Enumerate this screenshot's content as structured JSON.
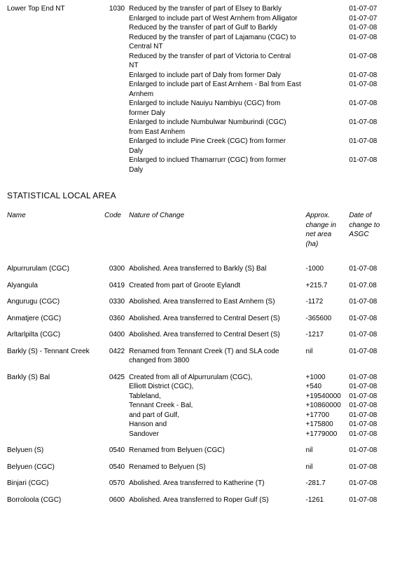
{
  "top_area": {
    "name": "Lower Top End NT",
    "code": "1030",
    "rows": [
      {
        "nature": "Reduced by the transfer of part of Elsey to Barkly",
        "approx": "",
        "date": "01-07-07"
      },
      {
        "nature": "Enlarged to include part of West Arnhem from Alligator",
        "approx": "",
        "date": "01-07-07"
      },
      {
        "nature": "Reduced by the transfer of part of Gulf to Barkly",
        "approx": "",
        "date": "01-07-08"
      },
      {
        "nature": "Reduced by the transfer of part of Lajamanu (CGC) to Central NT",
        "approx": "",
        "date": "01-07-08"
      },
      {
        "nature": "Reduced by the transfer of part of Victoria to Central NT",
        "approx": "",
        "date": "01-07-08"
      },
      {
        "nature": "Enlarged to include part of Daly from former Daly",
        "approx": "",
        "date": "01-07-08"
      },
      {
        "nature": "Enlarged to include part of East Arnhem - Bal from East Arnhem",
        "approx": "",
        "date": "01-07-08"
      },
      {
        "nature": "Enlarged to include Nauiyu Nambiyu (CGC) from former Daly",
        "approx": "",
        "date": "01-07-08"
      },
      {
        "nature": "Enlarged to include Numbulwar Numburindi (CGC) from East Arnhem",
        "approx": "",
        "date": "01-07-08"
      },
      {
        "nature": "Enlarged to include Pine Creek (CGC) from former Daly",
        "approx": "",
        "date": "01-07-08"
      },
      {
        "nature": "Enlarged to inclued Thamarrurr (CGC) from former Daly",
        "approx": "",
        "date": "01-07-08"
      }
    ]
  },
  "section_heading": "STATISTICAL LOCAL AREA",
  "headers": {
    "name": "Name",
    "code": "Code",
    "nature": "Nature of Change",
    "approx": "Approx. change in net area (ha)",
    "date": "Date of change to ASGC"
  },
  "entries": [
    {
      "name": "Alpurrurulam (CGC)",
      "code": "0300",
      "rows": [
        {
          "nature": "Abolished. Area transferred to Barkly (S) Bal",
          "approx": "-1000",
          "date": "01-07-08"
        }
      ]
    },
    {
      "name": "Alyangula",
      "code": "0419",
      "rows": [
        {
          "nature": "Created from part of Groote Eylandt",
          "approx": "+215.7",
          "date": "01-07.08"
        }
      ]
    },
    {
      "name": "Angurugu (CGC)",
      "code": "0330",
      "rows": [
        {
          "nature": "Abolished. Area transferred to East Arnhem (S)",
          "approx": "-1172",
          "date": "01-07-08"
        }
      ]
    },
    {
      "name": "Anmatjere (CGC)",
      "code": "0360",
      "rows": [
        {
          "nature": "Abolished. Area transferred to Central Desert (S)",
          "approx": "-365600",
          "date": "01-07-08"
        }
      ]
    },
    {
      "name": "Arltarlpilta (CGC)",
      "code": "0400",
      "rows": [
        {
          "nature": "Abolished. Area transferred to Central Desert (S)",
          "approx": "-1217",
          "date": "01-07-08"
        }
      ]
    },
    {
      "name": "Barkly (S) - Tennant Creek",
      "code": "0422",
      "rows": [
        {
          "nature": "Renamed from Tennant Creek (T) and SLA code changed from 3800",
          "approx": "nil",
          "date": "01-07-08"
        }
      ]
    },
    {
      "name": "Barkly (S) Bal",
      "code": "0425",
      "rows": [
        {
          "nature": "Created from all of Alpurrurulam (CGC),",
          "approx": "+1000",
          "date": "01-07-08"
        },
        {
          "nature": "Elliott District (CGC),",
          "approx": "+540",
          "date": "01-07-08"
        },
        {
          "nature": "Tableland,",
          "approx": "+19540000",
          "date": "01-07-08"
        },
        {
          "nature": "Tennant Creek - Bal,",
          "approx": "+10860000",
          "date": "01-07-08"
        },
        {
          "nature": "and part of Gulf,",
          "approx": "+17700",
          "date": "01-07-08"
        },
        {
          "nature": "Hanson and",
          "approx": "+175800",
          "date": "01-07-08"
        },
        {
          "nature": "Sandover",
          "approx": "+1779000",
          "date": "01-07-08"
        }
      ]
    },
    {
      "name": "Belyuen (S)",
      "code": "0540",
      "rows": [
        {
          "nature": "Renamed from Belyuen (CGC)",
          "approx": "nil",
          "date": "01-07-08"
        }
      ]
    },
    {
      "name": "Belyuen (CGC)",
      "code": "0540",
      "rows": [
        {
          "nature": "Renamed to Belyuen (S)",
          "approx": "nil",
          "date": "01-07-08"
        }
      ]
    },
    {
      "name": "Binjari (CGC)",
      "code": "0570",
      "rows": [
        {
          "nature": "Abolished. Area transferred to Katherine (T)",
          "approx": "-281.7",
          "date": "01-07-08"
        }
      ]
    },
    {
      "name": "Borroloola (CGC)",
      "code": "0600",
      "rows": [
        {
          "nature": "Abolished. Area transferred to Roper Gulf (S)",
          "approx": "-1261",
          "date": "01-07-08"
        }
      ]
    }
  ]
}
